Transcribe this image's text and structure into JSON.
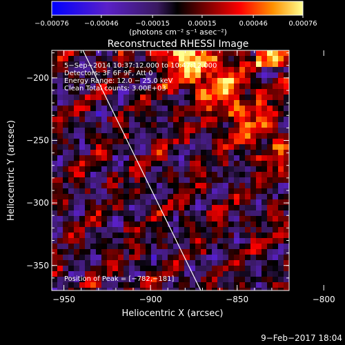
{
  "chart_data": {
    "type": "heatmap",
    "title": "Reconstructed RHESSI Image",
    "xlabel": "Heliocentric X (arcsec)",
    "ylabel": "Heliocentric Y (arcsec)",
    "xlim": [
      -957,
      -820
    ],
    "ylim": [
      -370,
      -178
    ],
    "x_ticks": [
      -950,
      -900,
      -850,
      -800
    ],
    "x_tick_labels": [
      "−950",
      "−900",
      "−850",
      "−800"
    ],
    "y_ticks": [
      -200,
      -250,
      -300,
      -350
    ],
    "y_tick_labels": [
      "−200",
      "−250",
      "−300",
      "−350"
    ],
    "colorbar": {
      "min": -0.00076,
      "max": 0.00076,
      "ticks": [
        -0.00076,
        -0.00046,
        -0.00015,
        0.00015,
        0.00046,
        0.00076
      ],
      "tick_labels": [
        "−0.00076",
        "−0.00046",
        "−0.00015",
        "0.00015",
        "0.00046",
        "0.00076"
      ],
      "unit_label": "(photons cm⁻² s⁻¹ asec⁻²)",
      "colors": [
        "#0000ff",
        "#5a20c8",
        "#3a1a60",
        "#000000",
        "#6a0000",
        "#ff0000",
        "#ff9000",
        "#ffff90"
      ]
    },
    "annotations": [
      "5−Sep−2014 10:37:12.000 to 10:47:12.000",
      "Detectors: 3F 6F 9F, Att 0",
      "Energy Range: 12.0 − 25.0 keV",
      "Clean    Total counts: 3.00E+03"
    ],
    "peak_label": "Position of Peak = [−782,−181]",
    "peak": [
      -782,
      -181
    ],
    "limb_line": [
      [
        -939,
        -178
      ],
      [
        -871,
        -370
      ]
    ],
    "grid": false
  },
  "footer": {
    "date": "9−Feb−2017 18:04"
  }
}
